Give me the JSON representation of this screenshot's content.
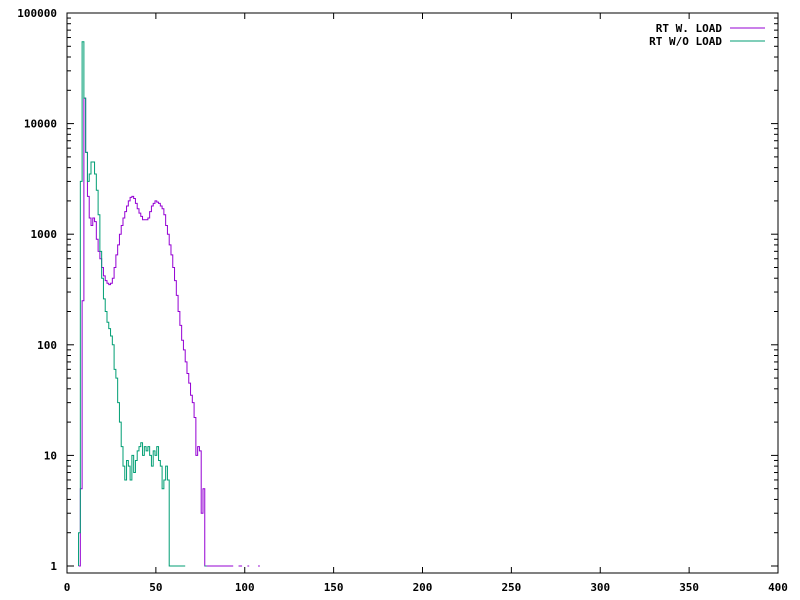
{
  "chart_data": {
    "type": "line",
    "title": "",
    "xlabel": "",
    "ylabel": "",
    "xlim": [
      0,
      400
    ],
    "ylim": [
      1,
      100000
    ],
    "yscale": "log",
    "grid": false,
    "legend_position": "top-right",
    "x_ticks": [
      "0",
      "50",
      "100",
      "150",
      "200",
      "250",
      "300",
      "350",
      "400"
    ],
    "y_ticks": [
      "1",
      "10",
      "100",
      "1000",
      "10000",
      "100000"
    ],
    "step": 1,
    "series": [
      {
        "name": "RT W. LOAD",
        "color": "#9400d3",
        "x": [
          7,
          8,
          9,
          10,
          11,
          12,
          13,
          14,
          15,
          16,
          17,
          18,
          19,
          20,
          21,
          22,
          23,
          24,
          25,
          26,
          27,
          28,
          29,
          30,
          31,
          32,
          33,
          34,
          35,
          36,
          37,
          38,
          39,
          40,
          41,
          42,
          43,
          44,
          45,
          46,
          47,
          48,
          49,
          50,
          51,
          52,
          53,
          54,
          55,
          56,
          57,
          58,
          59,
          60,
          61,
          62,
          63,
          64,
          65,
          66,
          67,
          68,
          69,
          70,
          71,
          72,
          73,
          74,
          75,
          76,
          77,
          78,
          79,
          80,
          81,
          82,
          83,
          84,
          85,
          86,
          87,
          88,
          89,
          90,
          91,
          92,
          93,
          97,
          98,
          102,
          108
        ],
        "y": [
          1,
          5,
          250,
          17000,
          5500,
          2200,
          1400,
          1200,
          1400,
          1300,
          900,
          700,
          600,
          500,
          420,
          380,
          360,
          350,
          360,
          400,
          500,
          650,
          800,
          1000,
          1200,
          1400,
          1600,
          1800,
          2000,
          2150,
          2200,
          2100,
          1900,
          1700,
          1550,
          1450,
          1350,
          1350,
          1350,
          1400,
          1600,
          1800,
          1900,
          2000,
          1950,
          1900,
          1800,
          1700,
          1500,
          1200,
          1000,
          800,
          650,
          500,
          380,
          280,
          200,
          150,
          110,
          90,
          70,
          55,
          45,
          35,
          30,
          22,
          10,
          12,
          11,
          3,
          5,
          1,
          1,
          1,
          1,
          1,
          1,
          1,
          1,
          1,
          1,
          1,
          1,
          1,
          1,
          1,
          1,
          1,
          1,
          1,
          1
        ],
        "visible_from": 7,
        "visible_to": 110
      },
      {
        "name": "RT W/O LOAD",
        "color": "#009e73",
        "x": [
          7,
          8,
          9,
          10,
          11,
          12,
          13,
          14,
          15,
          16,
          17,
          18,
          19,
          20,
          21,
          22,
          23,
          24,
          25,
          26,
          27,
          28,
          29,
          30,
          31,
          32,
          33,
          34,
          35,
          36,
          37,
          38,
          39,
          40,
          41,
          42,
          43,
          44,
          45,
          46,
          47,
          48,
          49,
          50,
          51,
          52,
          53,
          54,
          55,
          56,
          57,
          58,
          59,
          60,
          61,
          62,
          63,
          64,
          65,
          66,
          78
        ],
        "y": [
          2,
          3000,
          55000,
          17000,
          5500,
          3000,
          3500,
          4500,
          4500,
          3500,
          2500,
          1500,
          700,
          400,
          260,
          200,
          160,
          140,
          120,
          100,
          60,
          50,
          30,
          20,
          12,
          8,
          6,
          9,
          8,
          6,
          10,
          7,
          9,
          11,
          12,
          13,
          10,
          12,
          11,
          12,
          10,
          8,
          11,
          10,
          12,
          9,
          8,
          5,
          6,
          8,
          6,
          1,
          1,
          1,
          1,
          1,
          1,
          1,
          1,
          1,
          1
        ],
        "visible_from": 7,
        "visible_to": 78
      }
    ]
  }
}
